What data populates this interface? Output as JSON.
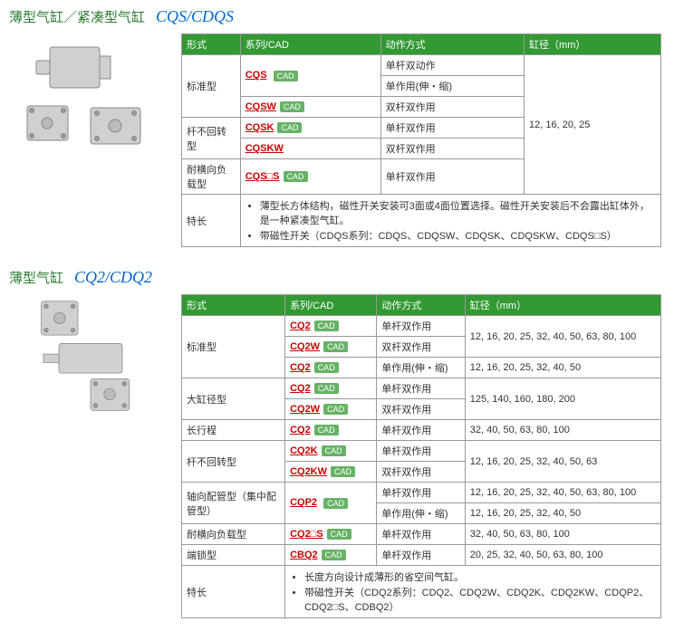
{
  "labels": {
    "cad_badge": "CAD",
    "features_label": "特长"
  },
  "headers": [
    "形式",
    "系列/CAD",
    "动作方式",
    "缸径（mm）"
  ],
  "section1": {
    "title_cn": "薄型气缸／紧凑型气缸",
    "title_en": "CQS/CDQS",
    "rows": [
      {
        "form": "标准型",
        "form_rowspan": 3,
        "series": "CQS",
        "series_rowspan": 1,
        "cad": true,
        "action": "单杆双动作",
        "bore": "12, 16, 20, 25",
        "bore_rowspan": 5
      },
      {
        "series": null,
        "series_rowspan": 0,
        "action": "单作用(伸・缩)"
      },
      {
        "series": "CQSW",
        "cad": true,
        "action": "双杆双作用"
      },
      {
        "form": "杆不回转型",
        "form_rowspan": 2,
        "series": "CQSK",
        "cad": true,
        "action": "单杆双作用"
      },
      {
        "series": "CQSKW",
        "cad": false,
        "action": "双杆双作用"
      },
      {
        "form": "耐横向负载型",
        "form_rowspan": 1,
        "series": "CQS□S",
        "cad": true,
        "action": "单杆双作用",
        "bore": "",
        "bore_rowspan": 0
      }
    ],
    "row5_bore_merge": true,
    "features": [
      "薄型长方体结构，磁性开关安装可3面或4面位置选择。磁性开关安装后不会露出缸体外，是一种紧凑型气缸。",
      "带磁性开关（CDQS系列：CDQS、CDQSW、CDQSK、CDQSKW、CDQS□S）"
    ]
  },
  "section2": {
    "title_cn": "薄型气缸",
    "title_en": "CQ2/CDQ2",
    "rows": [
      {
        "form": "标准型",
        "form_rowspan": 3,
        "series": "CQ2",
        "cad": true,
        "action": "单杆双作用",
        "bore": "12, 16, 20, 25, 32, 40, 50, 63, 80, 100",
        "bore_rowspan": 1
      },
      {
        "series": "CQ2W",
        "cad": true,
        "action": "双杆双作用",
        "bore": "",
        "bore_rowspan": 0
      },
      {
        "series": "CQ2",
        "cad": true,
        "action": "单作用(伸・缩)",
        "bore": "12, 16, 20, 25, 32, 40, 50",
        "bore_rowspan": 1
      },
      {
        "form": "大缸径型",
        "form_rowspan": 2,
        "series": "CQ2",
        "cad": true,
        "action": "单杆双作用",
        "bore": "125, 140, 160, 180, 200",
        "bore_rowspan": 2
      },
      {
        "series": "CQ2W",
        "cad": true,
        "action": "双杆双作用"
      },
      {
        "form": "长行程",
        "form_rowspan": 1,
        "series": "CQ2",
        "cad": true,
        "action": "单杆双作用",
        "bore": "32, 40, 50, 63, 80, 100",
        "bore_rowspan": 1
      },
      {
        "form": "杆不回转型",
        "form_rowspan": 2,
        "series": "CQ2K",
        "cad": true,
        "action": "单杆双作用",
        "bore": "12, 16, 20, 25, 32, 40, 50, 63",
        "bore_rowspan": 2
      },
      {
        "series": "CQ2KW",
        "cad": true,
        "action": "双杆双作用"
      },
      {
        "form": "轴向配管型（集中配管型）",
        "form_rowspan": 2,
        "series": "CQP2",
        "series_rowspan": 2,
        "cad": true,
        "action": "单杆双作用",
        "bore": "12, 16, 20, 25, 32, 40, 50, 63, 80, 100",
        "bore_rowspan": 1
      },
      {
        "action": "单作用(伸・缩)",
        "bore": "12, 16, 20, 25, 32, 40, 50",
        "bore_rowspan": 1
      },
      {
        "form": "耐横向负载型",
        "form_rowspan": 1,
        "series": "CQ2□S",
        "cad": true,
        "action": "单杆双作用",
        "bore": "32, 40, 50, 63, 80, 100",
        "bore_rowspan": 1
      },
      {
        "form": "端锁型",
        "form_rowspan": 1,
        "series": "CBQ2",
        "cad": true,
        "action": "单杆双作用",
        "bore": "20, 25, 32, 40, 50, 63, 80, 100",
        "bore_rowspan": 1
      }
    ],
    "features": [
      "长度方向设计成薄形的省空间气缸。",
      "带磁性开关（CDQ2系列：CDQ2、CDQ2W、CDQ2K、CDQ2KW、CDQP2、CDQ2□S、CDBQ2）"
    ]
  }
}
